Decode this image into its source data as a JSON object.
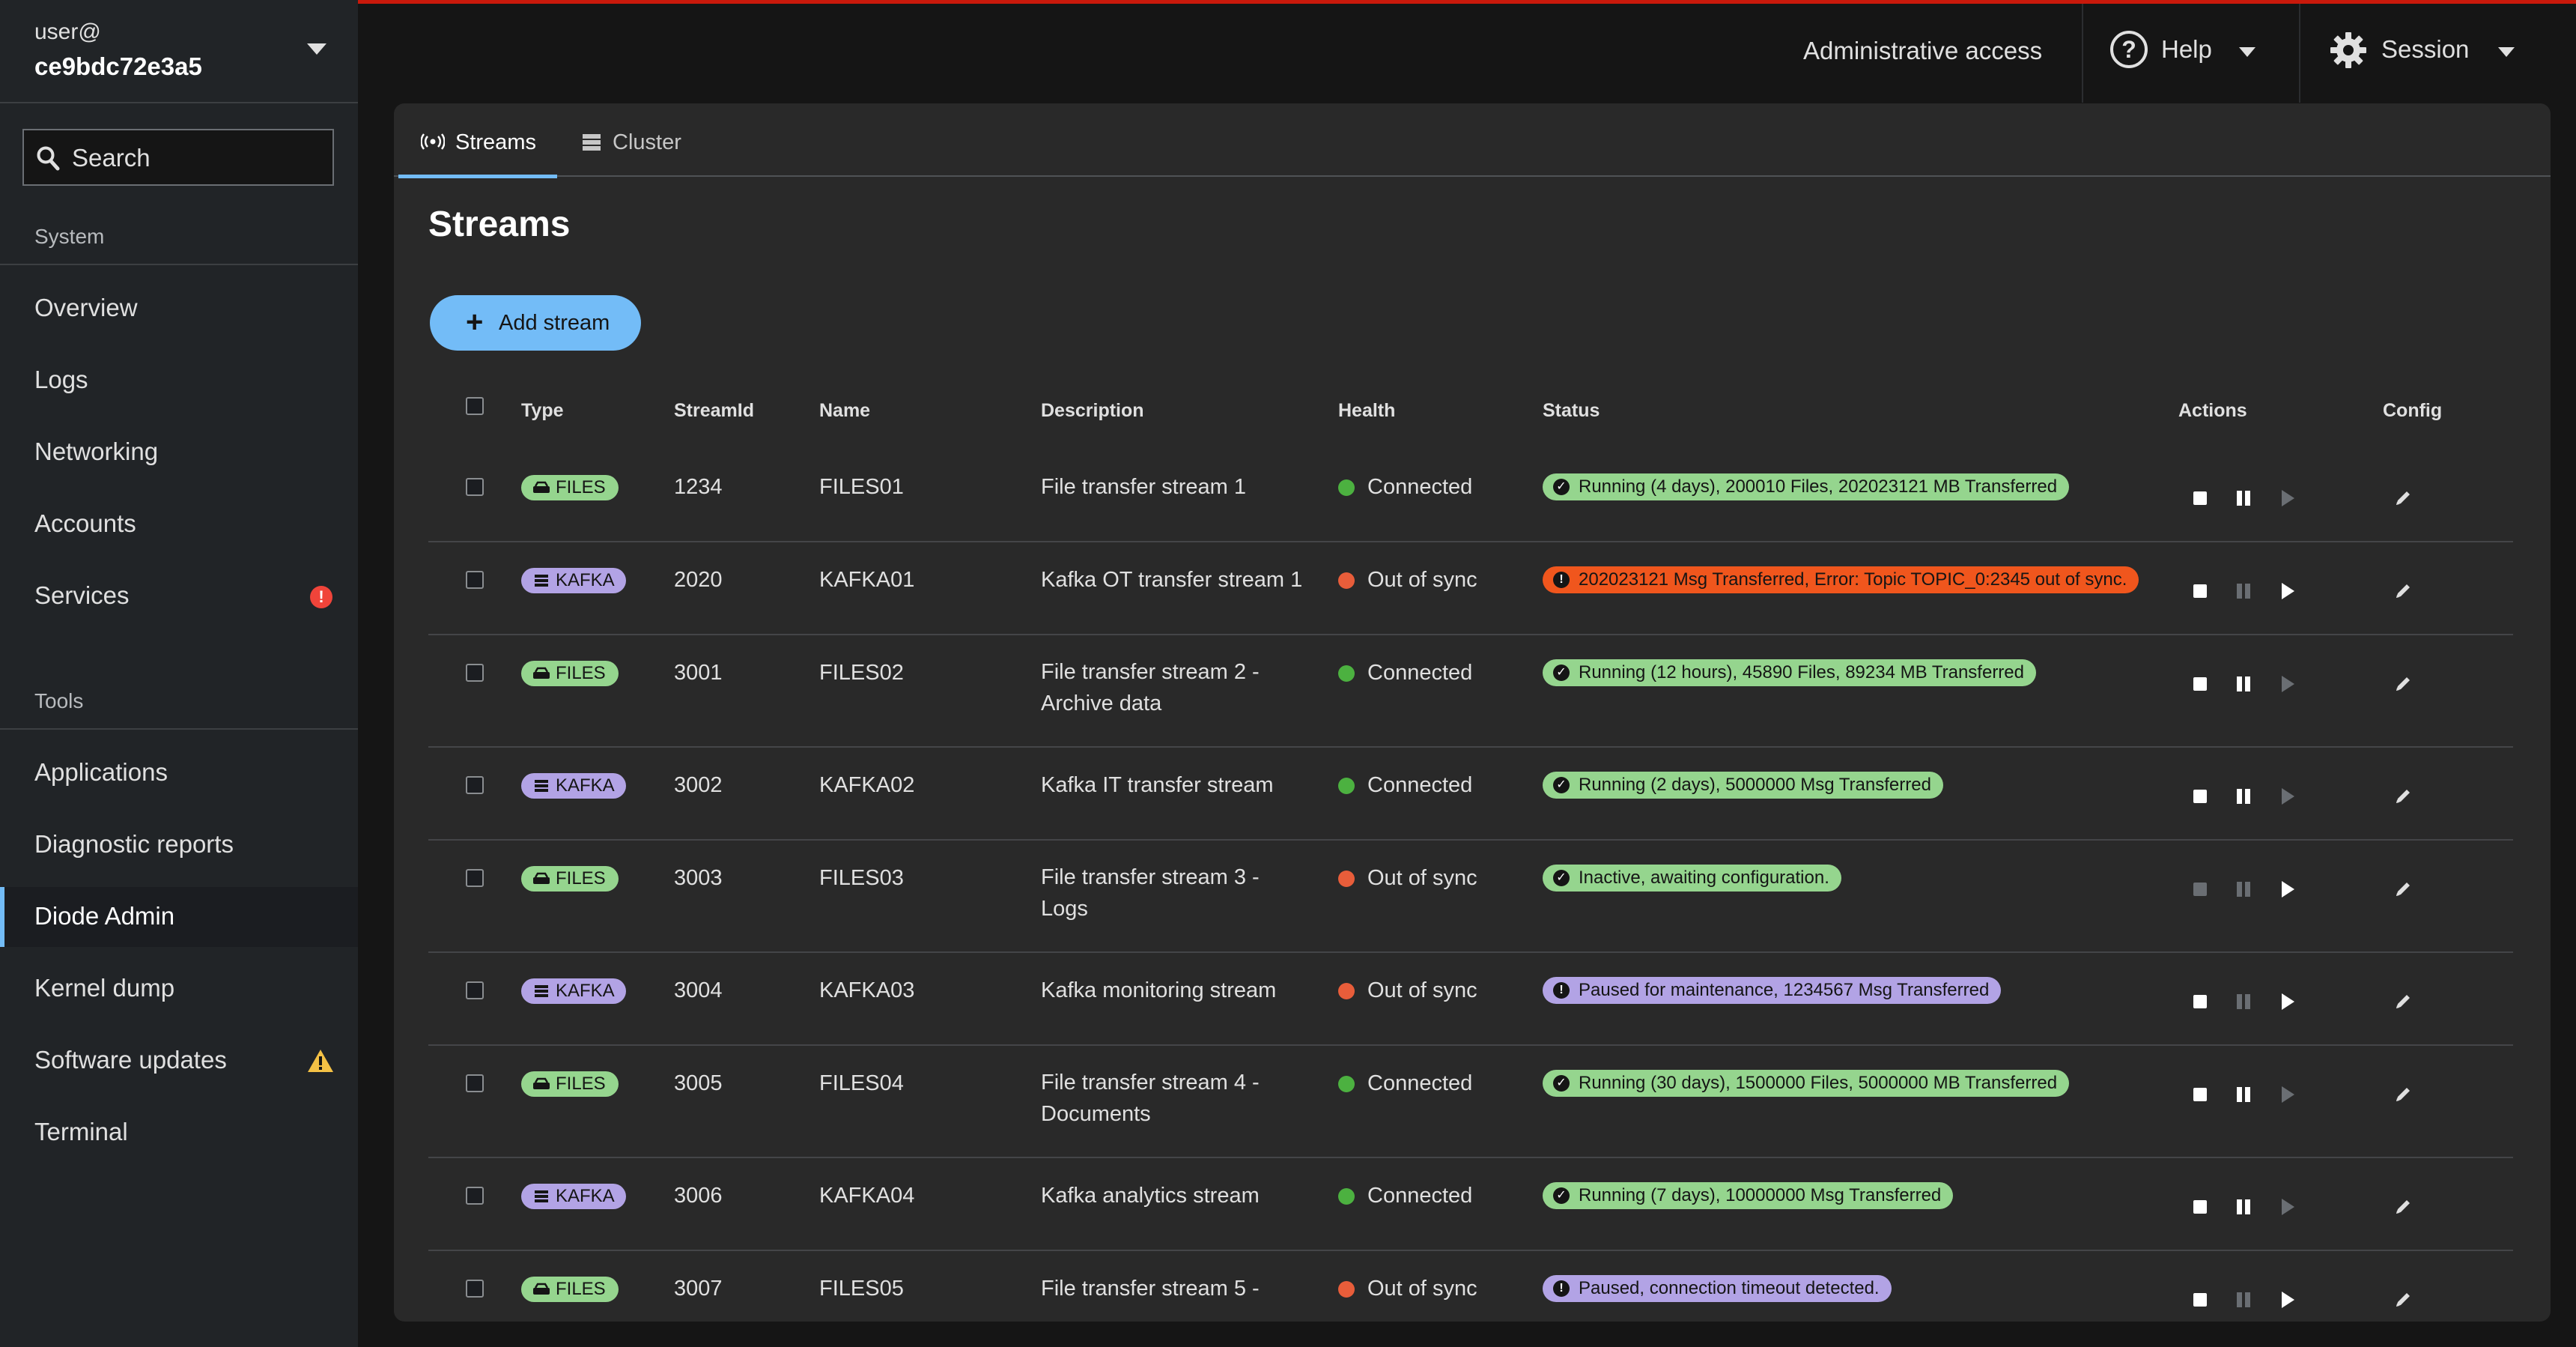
{
  "user": {
    "line1": "user@",
    "hostname": "ce9bdc72e3a5"
  },
  "search": {
    "placeholder": "Search"
  },
  "sidebar": {
    "system_label": "System",
    "tools_label": "Tools",
    "system_items": [
      {
        "label": "Overview"
      },
      {
        "label": "Logs"
      },
      {
        "label": "Networking"
      },
      {
        "label": "Accounts"
      },
      {
        "label": "Services",
        "badge": "!"
      }
    ],
    "tool_items": [
      {
        "label": "Applications"
      },
      {
        "label": "Diagnostic reports"
      },
      {
        "label": "Diode Admin",
        "active": true
      },
      {
        "label": "Kernel dump"
      },
      {
        "label": "Software updates"
      },
      {
        "label": "Terminal"
      }
    ]
  },
  "header": {
    "admin": "Administrative access",
    "help": "Help",
    "session": "Session"
  },
  "tabs": [
    {
      "label": "Streams",
      "icon": "broadcast-icon"
    },
    {
      "label": "Cluster",
      "icon": "server-icon"
    }
  ],
  "page": {
    "title": "Streams",
    "add_button": "Add stream"
  },
  "table": {
    "columns": [
      "Type",
      "StreamId",
      "Name",
      "Description",
      "Health",
      "Status",
      "Actions",
      "Config"
    ],
    "rows": [
      {
        "type": "FILES",
        "id": "1234",
        "name": "FILES01",
        "description": "File transfer stream 1",
        "health": "Connected",
        "status": "Running (4 days), 200010 Files, 202023121 MB Transferred",
        "status_kind": "green",
        "actions": [
          true,
          true,
          false
        ]
      },
      {
        "type": "KAFKA",
        "id": "2020",
        "name": "KAFKA01",
        "description": "Kafka OT transfer stream 1",
        "health": "Out of sync",
        "status": "202023121 Msg Transferred, Error: Topic TOPIC_0:2345 out of sync.",
        "status_kind": "red",
        "actions": [
          true,
          false,
          true
        ]
      },
      {
        "type": "FILES",
        "id": "3001",
        "name": "FILES02",
        "description": "File transfer stream 2 - Archive data",
        "health": "Connected",
        "status": "Running (12 hours), 45890 Files, 89234 MB Transferred",
        "status_kind": "green",
        "actions": [
          true,
          true,
          false
        ]
      },
      {
        "type": "KAFKA",
        "id": "3002",
        "name": "KAFKA02",
        "description": "Kafka IT transfer stream",
        "health": "Connected",
        "status": "Running (2 days), 5000000 Msg Transferred",
        "status_kind": "green",
        "actions": [
          true,
          true,
          false
        ]
      },
      {
        "type": "FILES",
        "id": "3003",
        "name": "FILES03",
        "description": "File transfer stream 3 - Logs",
        "health": "Out of sync",
        "status": "Inactive, awaiting configuration.",
        "status_kind": "green",
        "actions": [
          false,
          false,
          true
        ]
      },
      {
        "type": "KAFKA",
        "id": "3004",
        "name": "KAFKA03",
        "description": "Kafka monitoring stream",
        "health": "Out of sync",
        "status": "Paused for maintenance, 1234567 Msg Transferred",
        "status_kind": "purple",
        "actions": [
          true,
          false,
          true
        ]
      },
      {
        "type": "FILES",
        "id": "3005",
        "name": "FILES04",
        "description": "File transfer stream 4 - Documents",
        "health": "Connected",
        "status": "Running (30 days), 1500000 Files, 5000000 MB Transferred",
        "status_kind": "green",
        "actions": [
          true,
          true,
          false
        ]
      },
      {
        "type": "KAFKA",
        "id": "3006",
        "name": "KAFKA04",
        "description": "Kafka analytics stream",
        "health": "Connected",
        "status": "Running (7 days), 10000000 Msg Transferred",
        "status_kind": "green",
        "actions": [
          true,
          true,
          false
        ]
      },
      {
        "type": "FILES",
        "id": "3007",
        "name": "FILES05",
        "description": "File transfer stream 5 -",
        "health": "Out of sync",
        "status": "Paused, connection timeout detected.",
        "status_kind": "purple",
        "actions": [
          true,
          false,
          true
        ]
      }
    ]
  },
  "colors": {
    "connected": "#4cb140",
    "out_of_sync": "#e85d3a",
    "accent": "#73bcf7"
  }
}
